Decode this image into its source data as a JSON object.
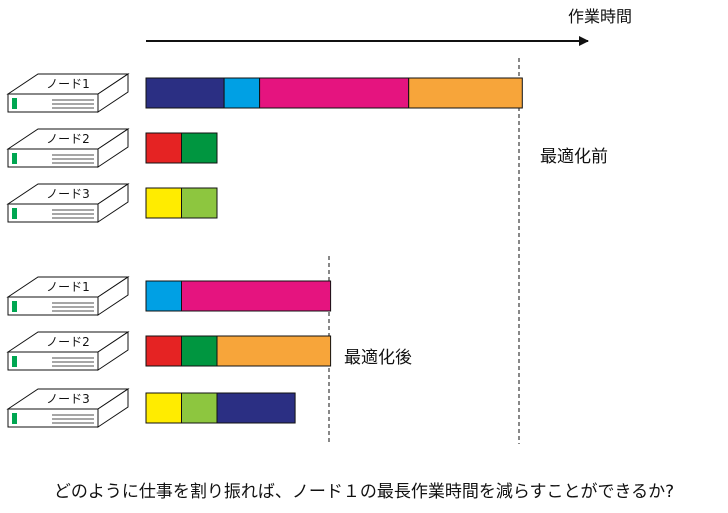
{
  "axis": {
    "label": "作業時間"
  },
  "labels": {
    "before": "最適化前",
    "after": "最適化後"
  },
  "question": "どのように仕事を割り振れば、ノード１の最長作業時間を減らすことができるか?",
  "colors": {
    "navy": "#2b2f83",
    "blue": "#00a0e4",
    "magenta": "#e5147f",
    "orange": "#f7a53a",
    "red": "#e52323",
    "green": "#009640",
    "yellow": "#ffec00",
    "lime": "#8dc63f",
    "node_led": "#00a651"
  },
  "sections": [
    {
      "name": "before",
      "nodes": [
        {
          "label": "ノード1",
          "tasks": [
            {
              "color": "navy",
              "len": 2.2
            },
            {
              "color": "blue",
              "len": 1
            },
            {
              "color": "magenta",
              "len": 4.2
            },
            {
              "color": "orange",
              "len": 3.2
            }
          ]
        },
        {
          "label": "ノード2",
          "tasks": [
            {
              "color": "red",
              "len": 1
            },
            {
              "color": "green",
              "len": 1
            }
          ]
        },
        {
          "label": "ノード3",
          "tasks": [
            {
              "color": "yellow",
              "len": 1
            },
            {
              "color": "lime",
              "len": 1
            }
          ]
        }
      ]
    },
    {
      "name": "after",
      "nodes": [
        {
          "label": "ノード1",
          "tasks": [
            {
              "color": "blue",
              "len": 1
            },
            {
              "color": "magenta",
              "len": 4.2
            }
          ]
        },
        {
          "label": "ノード2",
          "tasks": [
            {
              "color": "red",
              "len": 1
            },
            {
              "color": "green",
              "len": 1
            },
            {
              "color": "orange",
              "len": 3.2
            }
          ]
        },
        {
          "label": "ノード3",
          "tasks": [
            {
              "color": "yellow",
              "len": 1
            },
            {
              "color": "lime",
              "len": 1
            },
            {
              "color": "navy",
              "len": 2.2
            }
          ]
        }
      ]
    }
  ]
}
